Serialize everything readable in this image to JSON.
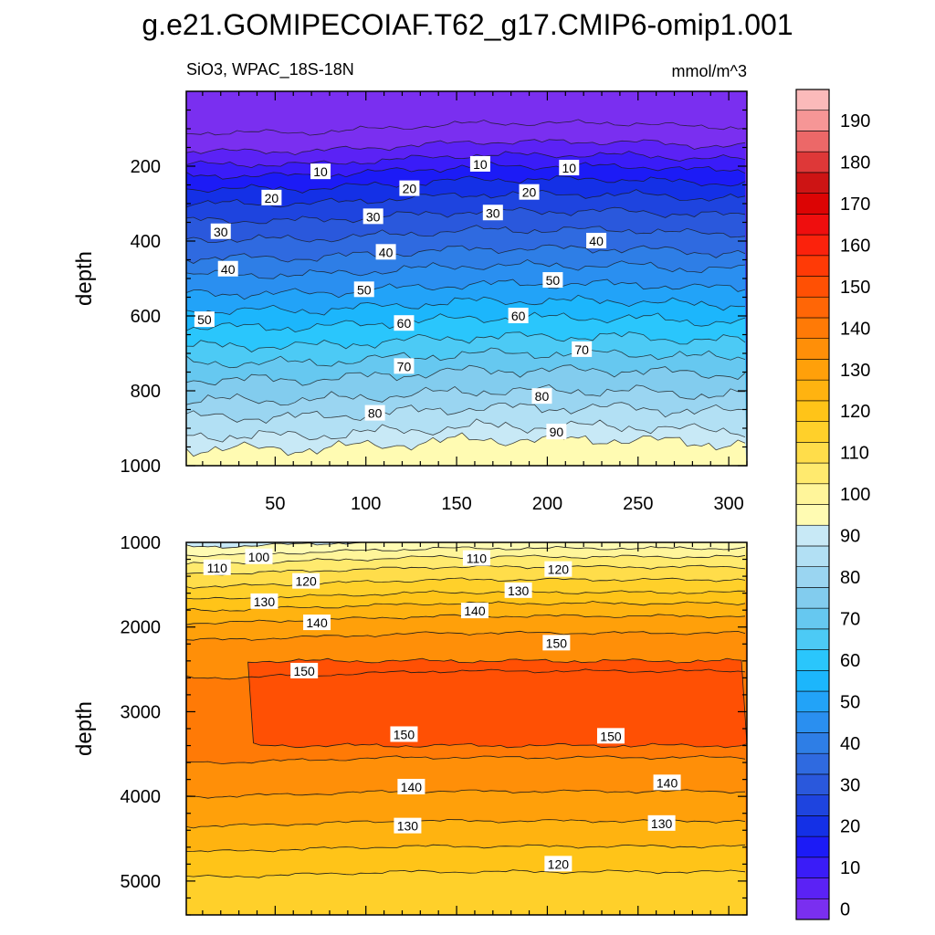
{
  "chart_data": {
    "type": "heatmap",
    "title": "g.e21.GOMIPECOIAF.T62_g17.CMIP6-omip1.001",
    "left_string": "SiO3, WPAC_18S-18N",
    "right_string": "mmol/m^3",
    "ylabel": "depth",
    "xlim": [
      1,
      310
    ],
    "x_ticks": [
      "50",
      "100",
      "150",
      "200",
      "250",
      "300"
    ],
    "x_tick_values": [
      50,
      100,
      150,
      200,
      250,
      300
    ],
    "panels": [
      {
        "name": "upper-0-1000m",
        "ylim": [
          0,
          1000
        ],
        "y_ticks": [
          "200",
          "400",
          "600",
          "800",
          "1000"
        ],
        "y_tick_values": [
          200,
          400,
          600,
          800,
          1000
        ],
        "contour_depths": [
          {
            "level": 0,
            "depth": 110
          },
          {
            "level": 5,
            "depth": 160
          },
          {
            "level": 10,
            "depth": 195
          },
          {
            "level": 15,
            "depth": 225
          },
          {
            "level": 20,
            "depth": 260
          },
          {
            "level": 25,
            "depth": 300
          },
          {
            "level": 30,
            "depth": 345
          },
          {
            "level": 35,
            "depth": 395
          },
          {
            "level": 40,
            "depth": 445
          },
          {
            "level": 45,
            "depth": 490
          },
          {
            "level": 50,
            "depth": 540
          },
          {
            "level": 55,
            "depth": 585
          },
          {
            "level": 60,
            "depth": 630
          },
          {
            "level": 65,
            "depth": 680
          },
          {
            "level": 70,
            "depth": 725
          },
          {
            "level": 75,
            "depth": 770
          },
          {
            "level": 80,
            "depth": 825
          },
          {
            "level": 85,
            "depth": 870
          },
          {
            "level": 90,
            "depth": 920
          },
          {
            "level": 95,
            "depth": 955
          }
        ],
        "labels": [
          {
            "text": "10",
            "x": 75,
            "y": 215
          },
          {
            "text": "20",
            "x": 48,
            "y": 285
          },
          {
            "text": "10",
            "x": 163,
            "y": 195
          },
          {
            "text": "10",
            "x": 212,
            "y": 205
          },
          {
            "text": "20",
            "x": 124,
            "y": 260
          },
          {
            "text": "20",
            "x": 190,
            "y": 270
          },
          {
            "text": "30",
            "x": 20,
            "y": 375
          },
          {
            "text": "30",
            "x": 104,
            "y": 335
          },
          {
            "text": "30",
            "x": 170,
            "y": 325
          },
          {
            "text": "40",
            "x": 227,
            "y": 400
          },
          {
            "text": "40",
            "x": 24,
            "y": 475
          },
          {
            "text": "40",
            "x": 111,
            "y": 430
          },
          {
            "text": "50",
            "x": 99,
            "y": 530
          },
          {
            "text": "50",
            "x": 203,
            "y": 505
          },
          {
            "text": "50",
            "x": 11,
            "y": 610
          },
          {
            "text": "60",
            "x": 121,
            "y": 620
          },
          {
            "text": "60",
            "x": 184,
            "y": 600
          },
          {
            "text": "70",
            "x": 219,
            "y": 690
          },
          {
            "text": "70",
            "x": 121,
            "y": 735
          },
          {
            "text": "80",
            "x": 197,
            "y": 815
          },
          {
            "text": "80",
            "x": 105,
            "y": 860
          },
          {
            "text": "90",
            "x": 205,
            "y": 910
          }
        ]
      },
      {
        "name": "lower-1000-5400m",
        "ylim": [
          1000,
          5400
        ],
        "y_ticks": [
          "1000",
          "2000",
          "3000",
          "4000",
          "5000"
        ],
        "y_tick_values": [
          1000,
          2000,
          3000,
          4000,
          5000
        ],
        "contour_depths": [
          {
            "level": 95,
            "depth": 1050
          },
          {
            "level": 100,
            "depth": 1150
          },
          {
            "level": 105,
            "depth": 1250
          },
          {
            "level": 110,
            "depth": 1370
          },
          {
            "level": 115,
            "depth": 1520
          },
          {
            "level": 120,
            "depth": 1670
          },
          {
            "level": 125,
            "depth": 1800
          },
          {
            "level": 130,
            "depth": 1950
          },
          {
            "level": 135,
            "depth": 2150
          },
          {
            "level": 140,
            "depth": 2600
          }
        ],
        "core_145": {
          "top": 2400,
          "bottom": 3400,
          "x_start": 35
        },
        "bottom_contours": [
          {
            "level": 140,
            "depth": 3600
          },
          {
            "level": 135,
            "depth": 4000
          },
          {
            "level": 130,
            "depth": 4350
          },
          {
            "level": 125,
            "depth": 4650
          },
          {
            "level": 120,
            "depth": 4950
          }
        ],
        "labels": [
          {
            "text": "100",
            "x": 41,
            "y": 1170
          },
          {
            "text": "110",
            "x": 18,
            "y": 1300
          },
          {
            "text": "110",
            "x": 161,
            "y": 1190
          },
          {
            "text": "120",
            "x": 67,
            "y": 1460
          },
          {
            "text": "120",
            "x": 206,
            "y": 1320
          },
          {
            "text": "130",
            "x": 44,
            "y": 1700
          },
          {
            "text": "130",
            "x": 184,
            "y": 1570
          },
          {
            "text": "140",
            "x": 73,
            "y": 1950
          },
          {
            "text": "140",
            "x": 160,
            "y": 1810
          },
          {
            "text": "150",
            "x": 205,
            "y": 2190
          },
          {
            "text": "150",
            "x": 66,
            "y": 2520
          },
          {
            "text": "150",
            "x": 121,
            "y": 3270
          },
          {
            "text": "150",
            "x": 235,
            "y": 3290
          },
          {
            "text": "140",
            "x": 125,
            "y": 3890
          },
          {
            "text": "140",
            "x": 266,
            "y": 3840
          },
          {
            "text": "130",
            "x": 123,
            "y": 4350
          },
          {
            "text": "130",
            "x": 263,
            "y": 4320
          },
          {
            "text": "120",
            "x": 206,
            "y": 4800
          }
        ]
      }
    ],
    "colorbar": {
      "levels": [
        0,
        5,
        10,
        15,
        20,
        25,
        30,
        35,
        40,
        45,
        50,
        55,
        60,
        65,
        70,
        75,
        80,
        85,
        90,
        95,
        100,
        105,
        110,
        115,
        120,
        125,
        130,
        135,
        140,
        145,
        150,
        155,
        160,
        165,
        170,
        175,
        180,
        185,
        190,
        195
      ],
      "tick_labels": [
        "0",
        "10",
        "20",
        "30",
        "40",
        "50",
        "60",
        "70",
        "80",
        "90",
        "100",
        "110",
        "120",
        "130",
        "140",
        "150",
        "160",
        "170",
        "180",
        "190"
      ],
      "colors": [
        "#7a2ff0",
        "#5b22f5",
        "#3a1cf8",
        "#1c1bf6",
        "#1430e6",
        "#1e44df",
        "#2a58dc",
        "#2f6ae0",
        "#2e7ee6",
        "#2a8ff0",
        "#22a3f8",
        "#1cb6fc",
        "#2ac6fc",
        "#4ccaf5",
        "#66c8f0",
        "#82ccee",
        "#9ad5f1",
        "#b2e0f4",
        "#c8e9f6",
        "#fffbb2",
        "#fff59a",
        "#ffea6e",
        "#ffdd4a",
        "#ffd02a",
        "#ffc418",
        "#ffb310",
        "#ffa00a",
        "#ff8f08",
        "#ff7a06",
        "#ff6606",
        "#ff5004",
        "#ff3a06",
        "#fb220c",
        "#ef0e0e",
        "#dc0404",
        "#cd1414",
        "#de3838",
        "#ec6868",
        "#f69696",
        "#fbbaba"
      ]
    }
  }
}
